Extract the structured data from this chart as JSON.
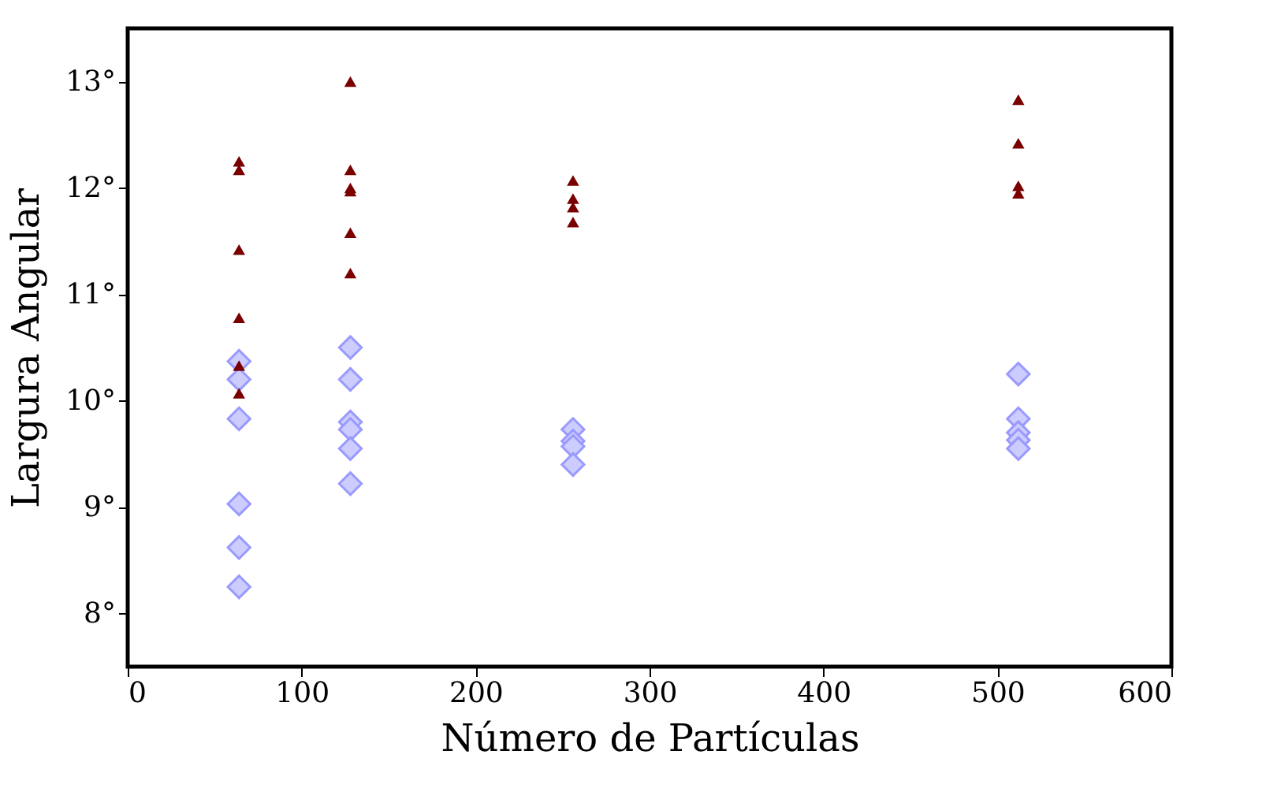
{
  "chart_data": {
    "type": "scatter",
    "xlabel": "Número de Partículas",
    "ylabel": "Largura Angular",
    "xlim": [
      0,
      600
    ],
    "xticks": [
      0,
      100,
      200,
      300,
      400,
      500,
      600
    ],
    "ylim": [
      7.5,
      13.5
    ],
    "yticks": [
      {
        "value": 8,
        "label": "8°"
      },
      {
        "value": 9,
        "label": "9°"
      },
      {
        "value": 10,
        "label": "10°"
      },
      {
        "value": 11,
        "label": "11°"
      },
      {
        "value": 12,
        "label": "12°"
      },
      {
        "value": 13,
        "label": "13°"
      }
    ],
    "grid": false,
    "series": [
      {
        "color": "#7a0000",
        "marker": "triangle",
        "x": [
          64,
          64,
          64,
          64,
          64,
          64,
          128,
          128,
          128,
          128,
          128,
          128,
          256,
          256,
          256,
          256,
          512,
          512,
          512,
          512
        ],
        "values": [
          12.25,
          12.17,
          11.42,
          10.78,
          10.33,
          10.07,
          13.0,
          12.17,
          12.0,
          11.97,
          11.58,
          11.2,
          12.07,
          11.9,
          11.82,
          11.68,
          12.83,
          12.42,
          12.02,
          11.95
        ]
      },
      {
        "color": "#ccccff",
        "marker": "diamond",
        "x": [
          64,
          64,
          64,
          64,
          64,
          64,
          128,
          128,
          128,
          128,
          128,
          128,
          256,
          256,
          256,
          256,
          512,
          512,
          512,
          512,
          512
        ],
        "values": [
          10.37,
          10.2,
          9.83,
          9.03,
          8.62,
          8.25,
          10.5,
          10.2,
          9.8,
          9.73,
          9.55,
          9.22,
          9.73,
          9.62,
          9.57,
          9.4,
          10.25,
          9.83,
          9.7,
          9.63,
          9.55
        ]
      }
    ]
  }
}
